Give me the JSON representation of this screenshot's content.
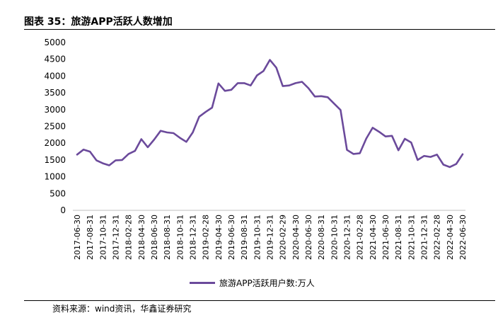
{
  "figure": {
    "title": "图表 35：旅游APP活跃人数增加",
    "source": "资料来源：wind资讯，华鑫证券研究"
  },
  "chart_data": {
    "type": "line",
    "title": "",
    "xlabel": "",
    "ylabel": "",
    "ylim": [
      0,
      5000
    ],
    "yticks": [
      0,
      500,
      1000,
      1500,
      2000,
      2500,
      3000,
      3500,
      4000,
      4500,
      5000
    ],
    "grid": false,
    "legend_position": "bottom",
    "line_color": "#6b4a9b",
    "x": [
      "2017-06-30",
      "2017-07-31",
      "2017-08-31",
      "2017-09-30",
      "2017-10-31",
      "2017-11-30",
      "2017-12-31",
      "2018-01-31",
      "2018-02-28",
      "2018-03-31",
      "2018-04-30",
      "2018-05-31",
      "2018-06-30",
      "2018-07-31",
      "2018-08-31",
      "2018-09-30",
      "2018-10-31",
      "2018-11-30",
      "2018-12-31",
      "2019-01-31",
      "2019-02-28",
      "2019-03-31",
      "2019-04-30",
      "2019-05-31",
      "2019-06-30",
      "2019-07-31",
      "2019-08-31",
      "2019-09-30",
      "2019-10-31",
      "2019-11-30",
      "2019-12-31",
      "2020-01-31",
      "2020-02-29",
      "2020-03-31",
      "2020-04-30",
      "2020-05-31",
      "2020-06-30",
      "2020-07-31",
      "2020-08-31",
      "2020-09-30",
      "2020-10-31",
      "2020-11-30",
      "2020-12-31",
      "2021-01-31",
      "2021-02-28",
      "2021-03-31",
      "2021-04-30",
      "2021-05-31",
      "2021-06-30",
      "2021-07-31",
      "2021-08-31",
      "2021-09-30",
      "2021-10-31",
      "2021-11-30",
      "2021-12-31",
      "2022-01-31",
      "2022-02-28",
      "2022-03-31",
      "2022-04-30",
      "2022-05-31",
      "2022-06-30"
    ],
    "xtick_labels": [
      "2017-06-30",
      "2017-08-31",
      "2017-10-31",
      "2017-12-31",
      "2018-02-28",
      "2018-04-30",
      "2018-06-30",
      "2018-08-31",
      "2018-10-31",
      "2018-12-31",
      "2019-02-28",
      "2019-04-30",
      "2019-06-30",
      "2019-08-31",
      "2019-10-31",
      "2019-12-31",
      "2020-02-29",
      "2020-04-30",
      "2020-06-30",
      "2020-08-31",
      "2020-10-31",
      "2020-12-31",
      "2021-02-28",
      "2021-04-30",
      "2021-06-30",
      "2021-08-31",
      "2021-10-31",
      "2021-12-31",
      "2022-02-28",
      "2022-04-30",
      "2022-06-30"
    ],
    "series": [
      {
        "name": "旅游APP活跃用户数:万人",
        "values": [
          1660,
          1810,
          1750,
          1490,
          1400,
          1340,
          1490,
          1500,
          1680,
          1770,
          2120,
          1880,
          2110,
          2370,
          2320,
          2300,
          2160,
          2040,
          2320,
          2790,
          2930,
          3060,
          3780,
          3560,
          3590,
          3790,
          3790,
          3720,
          4020,
          4150,
          4480,
          4250,
          3700,
          3720,
          3790,
          3830,
          3640,
          3390,
          3400,
          3370,
          3180,
          2990,
          1800,
          1680,
          1700,
          2140,
          2460,
          2340,
          2200,
          2220,
          1790,
          2130,
          2020,
          1500,
          1620,
          1590,
          1660,
          1360,
          1290,
          1380,
          1670
        ]
      }
    ]
  }
}
